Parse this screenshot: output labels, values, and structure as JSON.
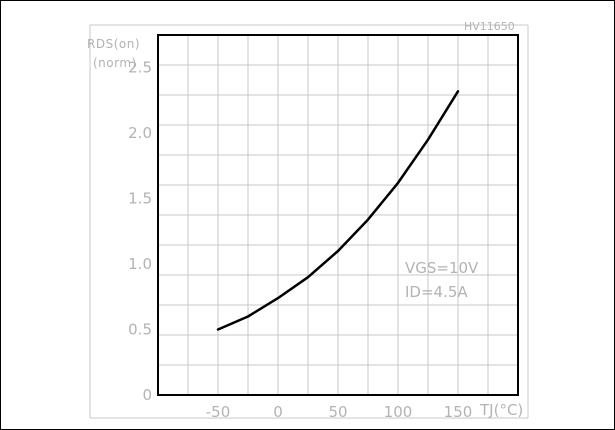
{
  "figure_code": "HV11650",
  "chart_data": {
    "type": "line",
    "ylabel_line1": "RDS(on)",
    "ylabel_line2": "(norm)",
    "xlabel": "TJ(°C)",
    "xlim": [
      -100,
      200
    ],
    "ylim": [
      0,
      2.75
    ],
    "x_ticks": [
      -50,
      0,
      50,
      100,
      150
    ],
    "x_tick_labels": [
      "-50",
      "0",
      "50",
      "100",
      "150"
    ],
    "y_ticks": [
      0,
      0.5,
      1.0,
      1.5,
      2.0,
      2.5
    ],
    "y_tick_labels": [
      "0",
      "0.5",
      "1.0",
      "1.5",
      "2.0",
      "2.5"
    ],
    "grid": true,
    "series": [
      {
        "x": [
          -50,
          -25,
          0,
          25,
          50,
          75,
          100,
          125,
          150
        ],
        "y": [
          0.5,
          0.6,
          0.74,
          0.9,
          1.1,
          1.34,
          1.62,
          1.95,
          2.32
        ]
      }
    ],
    "annotations": [
      {
        "text": "VGS=10V"
      },
      {
        "text": "ID=4.5A"
      }
    ]
  }
}
